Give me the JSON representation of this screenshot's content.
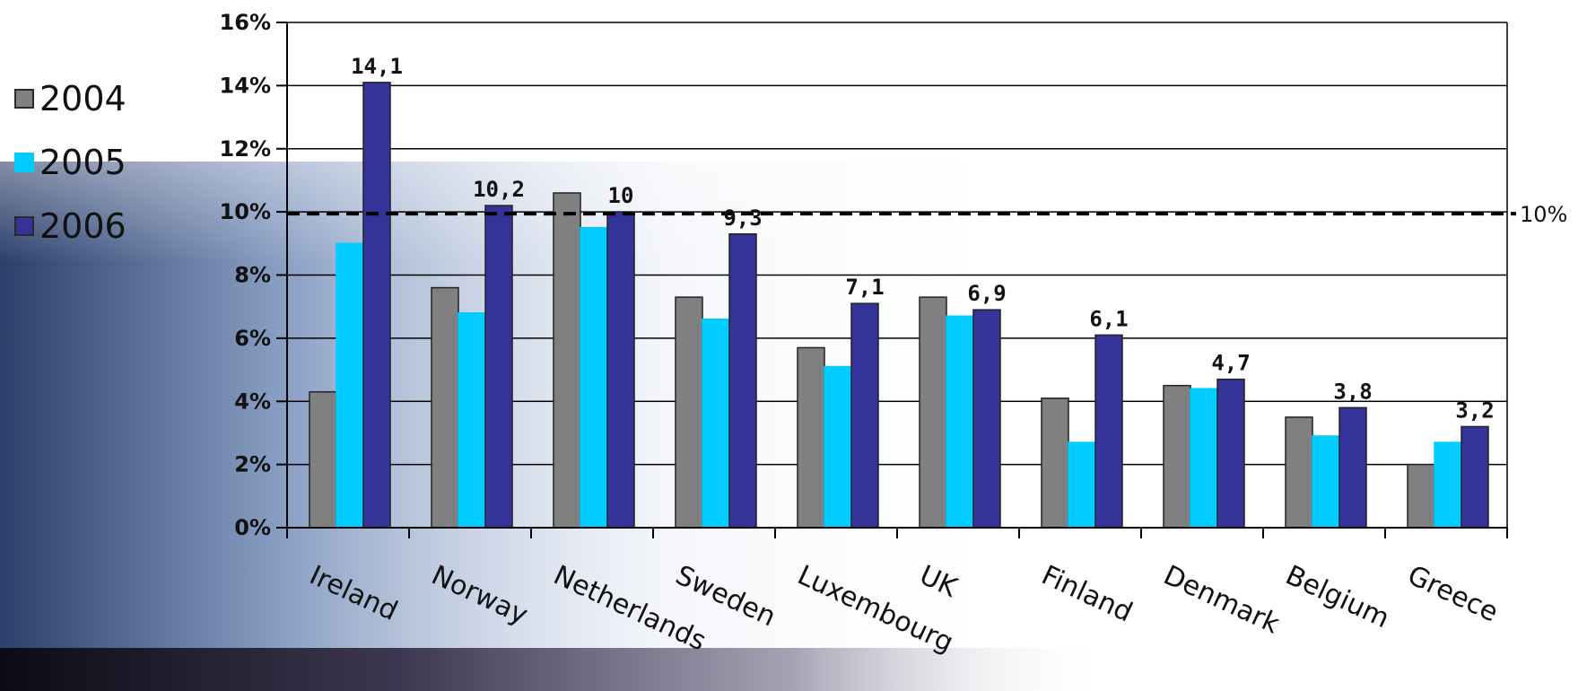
{
  "colors": {
    "series_2004": "#808080",
    "series_2005": "#00ccff",
    "series_2006": "#333399",
    "grid": "#000000"
  },
  "legend": {
    "items": [
      {
        "label": "2004",
        "color": "#808080"
      },
      {
        "label": "2005",
        "color": "#00ccff"
      },
      {
        "label": "2006",
        "color": "#333399"
      }
    ]
  },
  "chart_data": {
    "type": "bar",
    "title": "",
    "xlabel": "",
    "ylabel": "",
    "categories": [
      "Ireland",
      "Norway",
      "Netherlands",
      "Sweden",
      "Luxembourg",
      "UK",
      "Finland",
      "Denmark",
      "Belgium",
      "Greece"
    ],
    "series": [
      {
        "name": "2004",
        "values": [
          4.3,
          7.6,
          10.6,
          7.3,
          5.7,
          7.3,
          4.1,
          4.5,
          3.5,
          2.0
        ]
      },
      {
        "name": "2005",
        "values": [
          9.0,
          6.8,
          9.5,
          6.6,
          5.1,
          6.7,
          2.7,
          4.4,
          2.9,
          2.7
        ]
      },
      {
        "name": "2006",
        "values": [
          14.1,
          10.2,
          10.0,
          9.3,
          7.1,
          6.9,
          6.1,
          4.7,
          3.8,
          3.2
        ]
      }
    ],
    "data_labels_2006": [
      "14,1",
      "10,2",
      "10",
      "9,3",
      "7,1",
      "6,9",
      "6,1",
      "4,7",
      "3,8",
      "3,2"
    ],
    "yticks": [
      "0%",
      "2%",
      "4%",
      "6%",
      "8%",
      "10%",
      "12%",
      "14%",
      "16%"
    ],
    "ylim": [
      0,
      16
    ],
    "reference_line": {
      "value": 10,
      "label": "10%",
      "style": "dashed"
    },
    "grid": true,
    "legend_position": "left"
  }
}
